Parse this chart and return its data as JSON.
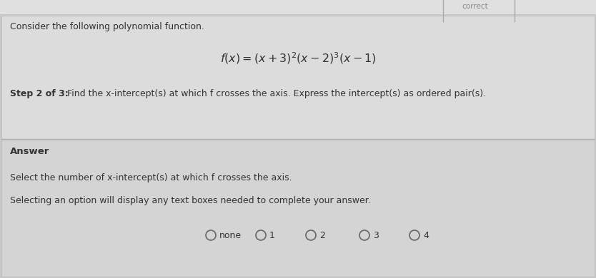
{
  "bg_color": "#c8c8c8",
  "top_panel_bg": "#dcdcdc",
  "bottom_panel_bg": "#d4d4d4",
  "top_bar_bg": "#e0e0e0",
  "top_label": "Consider the following polynomial function.",
  "formula": "$f(x) = (x + 3)^2(x - 2)^3(x - 1)$",
  "step_bold": "Step 2 of 3:",
  "step_detail": " Find the x-intercept(s) at which f crosses the axis. Express the intercept(s) as ordered pair(s).",
  "answer_label": "Answer",
  "select_text": "Select the number of x-intercept(s) at which f crosses the axis.",
  "selecting_text": "Selecting an option will display any text boxes needed to complete your answer.",
  "radio_options": [
    "none",
    "1",
    "2",
    "3",
    "4"
  ],
  "divider_color": "#b0b0b0",
  "text_color": "#333333",
  "radio_color": "#666666",
  "top_right_label": "correct",
  "font_size_body": 9.0,
  "font_size_formula": 11.5,
  "font_size_answer": 9.5,
  "font_size_step": 9.0
}
